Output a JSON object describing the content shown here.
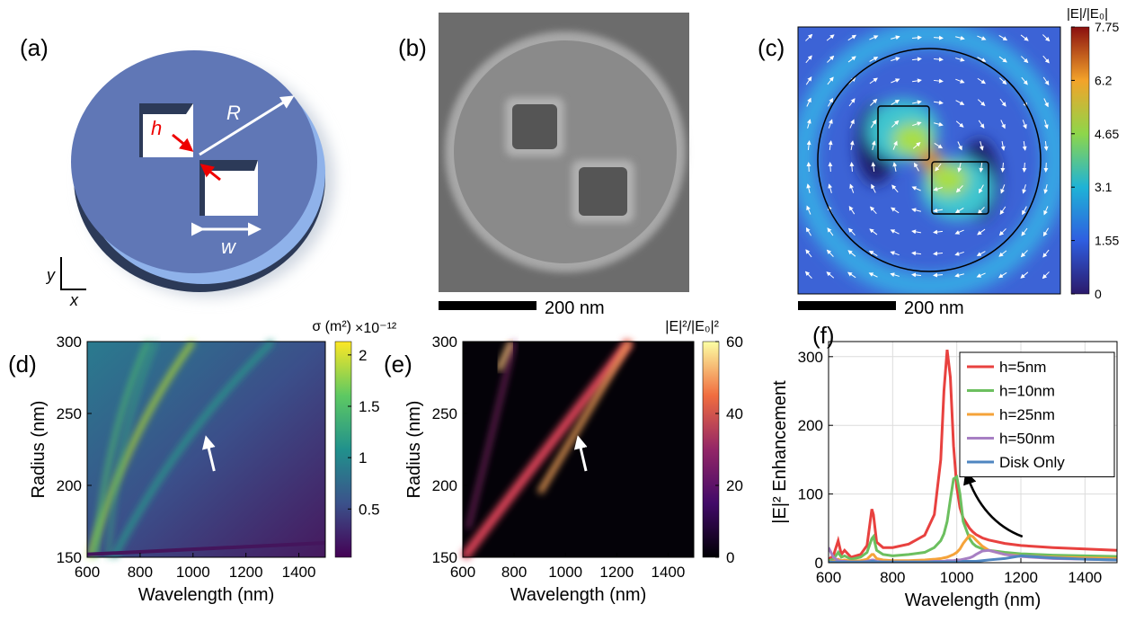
{
  "figure": {
    "a": {
      "label": "(a)",
      "h": "h",
      "R": "R",
      "w": "w",
      "y": "y",
      "x": "x"
    },
    "b": {
      "label": "(b)",
      "scale_bar": "200 nm"
    },
    "c": {
      "label": "(c)",
      "scale_bar": "200 nm",
      "colorbar": {
        "title": "|E|/|E₀|",
        "lim": [
          0,
          7.75
        ],
        "ticks": [
          0,
          1.55,
          3.1,
          4.65,
          6.2,
          7.75
        ]
      }
    }
  },
  "chart_data": [
    {
      "type": "heatmap",
      "panel_label": "(d)",
      "xlabel": "Wavelength (nm)",
      "ylabel": "Radius (nm)",
      "xlim": [
        600,
        1500
      ],
      "xticks": [
        600,
        800,
        1000,
        1200,
        1400
      ],
      "ylim": [
        150,
        300
      ],
      "yticks": [
        150,
        200,
        250,
        300
      ],
      "colorbar": {
        "title": "σ (m²)",
        "multiplier": "×10⁻¹²",
        "lim": [
          0.03,
          2.13
        ],
        "ticks": [
          0.5,
          1,
          1.5,
          2
        ],
        "colormap": "viridis"
      }
    },
    {
      "type": "heatmap",
      "panel_label": "(e)",
      "xlabel": "Wavelength (nm)",
      "ylabel": "Radius (nm)",
      "xlim": [
        600,
        1500
      ],
      "xticks": [
        600,
        800,
        1000,
        1200,
        1400
      ],
      "ylim": [
        150,
        300
      ],
      "yticks": [
        150,
        200,
        250,
        300
      ],
      "colorbar": {
        "title": "|E|²/|E₀|²",
        "lim": [
          0,
          60
        ],
        "ticks": [
          0,
          20,
          40,
          60
        ],
        "colormap": "inferno"
      }
    },
    {
      "type": "line",
      "panel_label": "(f)",
      "xlabel": "Wavelength (nm)",
      "ylabel": "|E|² Enhancement",
      "xlim": [
        600,
        1500
      ],
      "xticks": [
        600,
        800,
        1000,
        1200,
        1400
      ],
      "ylim": [
        0,
        322
      ],
      "yticks": [
        0,
        100,
        200,
        300
      ],
      "grid": true,
      "legend": "upper right",
      "x": [
        600,
        615,
        630,
        640,
        650,
        670,
        700,
        720,
        735,
        740,
        750,
        770,
        800,
        850,
        900,
        930,
        950,
        960,
        970,
        980,
        990,
        1000,
        1010,
        1020,
        1040,
        1050,
        1060,
        1080,
        1100,
        1150,
        1200,
        1300,
        1400,
        1500
      ],
      "series": [
        {
          "name": "h=5nm",
          "color": "#e8413f",
          "values": [
            5,
            10,
            32,
            12,
            18,
            8,
            12,
            25,
            78,
            70,
            30,
            22,
            22,
            27,
            40,
            70,
            150,
            250,
            310,
            270,
            170,
            110,
            80,
            65,
            50,
            45,
            41,
            36,
            33,
            28,
            25,
            22,
            20,
            18
          ]
        },
        {
          "name": "h=10nm",
          "color": "#6cbf5f",
          "values": [
            3,
            5,
            15,
            8,
            10,
            5,
            8,
            15,
            35,
            38,
            18,
            12,
            10,
            12,
            15,
            22,
            32,
            42,
            60,
            92,
            122,
            125,
            100,
            60,
            35,
            28,
            24,
            20,
            18,
            15,
            13,
            11,
            10,
            9
          ]
        },
        {
          "name": "h=25nm",
          "color": "#f5a33a",
          "values": [
            1,
            2,
            5,
            3,
            4,
            2,
            3,
            5,
            12,
            12,
            6,
            4,
            3,
            3,
            4,
            5,
            6,
            7,
            8,
            10,
            12,
            15,
            20,
            28,
            40,
            38,
            33,
            24,
            18,
            12,
            10,
            8,
            7,
            6
          ]
        },
        {
          "name": "h=50nm",
          "color": "#a77fc3",
          "values": [
            22,
            8,
            3,
            2,
            2,
            1,
            1,
            2,
            4,
            4,
            2,
            1,
            1,
            1,
            1,
            2,
            2,
            2,
            3,
            3,
            3,
            4,
            4,
            5,
            7,
            9,
            12,
            17,
            18,
            12,
            9,
            6,
            5,
            4
          ]
        },
        {
          "name": "Disk Only",
          "color": "#4f86c0",
          "values": [
            1,
            1,
            1,
            1,
            1,
            1,
            1,
            1,
            2,
            2,
            1,
            1,
            1,
            1,
            1,
            1,
            1,
            1,
            1,
            1,
            1,
            1,
            1,
            2,
            2,
            2,
            2,
            3,
            4,
            6,
            10,
            7,
            5,
            4
          ]
        }
      ]
    }
  ]
}
